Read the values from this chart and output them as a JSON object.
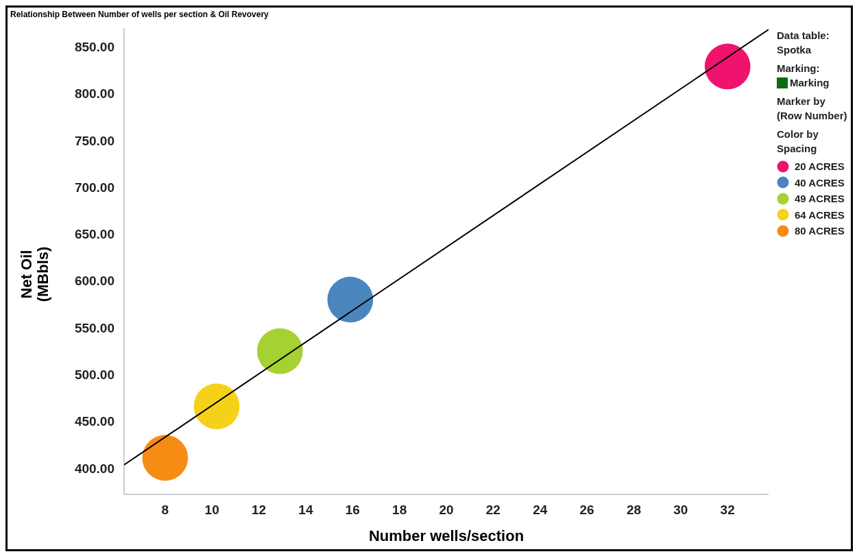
{
  "chart_data": {
    "type": "scatter",
    "title": "Relationship Between Number of wells per section & Oil Revovery",
    "xlabel": "Number wells/section",
    "ylabel": "Net Oil\n(MBbls)",
    "legend_title": "Color by\nSpacing",
    "annotations": [
      "Data table:\nSpotka",
      "Marking:",
      "Marking",
      "Marker by\n(Row Number)"
    ],
    "series": [
      {
        "name": "20 ACRES",
        "color": "#f0136e",
        "x": [
          32
        ],
        "values": [
          829
        ]
      },
      {
        "name": "40 ACRES",
        "color": "#4a85bd",
        "x": [
          15.9
        ],
        "values": [
          580
        ]
      },
      {
        "name": "49 ACRES",
        "color": "#a6d133",
        "x": [
          12.9
        ],
        "values": [
          525
        ]
      },
      {
        "name": "64 ACRES",
        "color": "#f5d11a",
        "x": [
          10.2
        ],
        "values": [
          466
        ]
      },
      {
        "name": "80 ACRES",
        "color": "#f78c14",
        "x": [
          8
        ],
        "values": [
          411
        ]
      },
      {
        "type": "line",
        "marker": "none",
        "color": "#000000",
        "x": [
          6.25,
          33.75
        ],
        "values": [
          403.5,
          868.5
        ]
      }
    ],
    "xlim": [
      6.25,
      33.75
    ],
    "ylim": [
      372,
      870
    ],
    "xticks": [
      8,
      10,
      12,
      14,
      16,
      18,
      20,
      22,
      24,
      26,
      28,
      30,
      32
    ],
    "yticks": [
      {
        "value": 400,
        "label": "400.00"
      },
      {
        "value": 450,
        "label": "450.00"
      },
      {
        "value": 500,
        "label": "500.00"
      },
      {
        "value": 550,
        "label": "550.00"
      },
      {
        "value": 600,
        "label": "600.00"
      },
      {
        "value": 650,
        "label": "650.00"
      },
      {
        "value": 700,
        "label": "700.00"
      },
      {
        "value": 750,
        "label": "750.00"
      },
      {
        "value": 800,
        "label": "800.00"
      },
      {
        "value": 850,
        "label": "850.00"
      }
    ],
    "marker": "circle",
    "legend": "right",
    "grid": false
  }
}
